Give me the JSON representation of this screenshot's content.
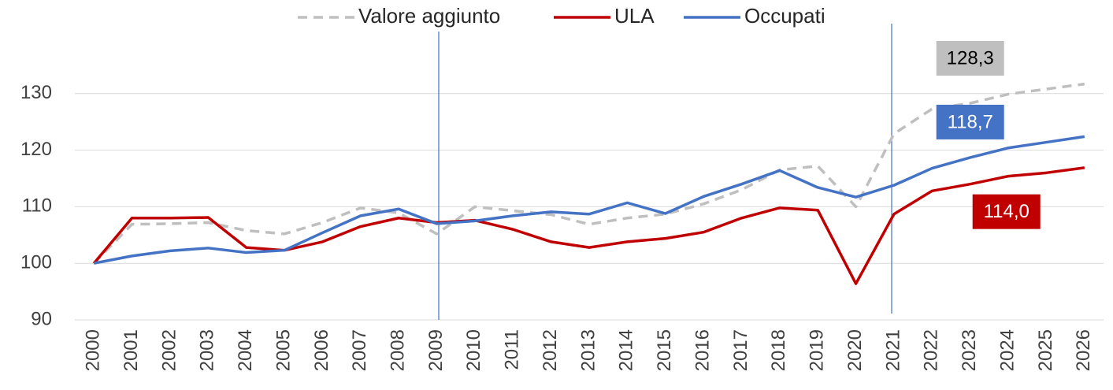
{
  "chart_data": {
    "type": "line",
    "categories": [
      "2000",
      "2001",
      "2002",
      "2003",
      "2004",
      "2005",
      "2006",
      "2007",
      "2008",
      "2009",
      "2010",
      "2011",
      "2012",
      "2013",
      "2014",
      "2015",
      "2016",
      "2017",
      "2018",
      "2019",
      "2020",
      "2021",
      "2022",
      "2023",
      "2024",
      "2025",
      "2026"
    ],
    "series": [
      {
        "name": "Valore aggiunto",
        "color": "#bfbfbf",
        "dashed": true,
        "values": [
          100,
          106.9,
          107,
          107.2,
          105.8,
          105.2,
          107.2,
          109.8,
          108.9,
          105.2,
          110,
          109.3,
          108.6,
          106.9,
          108,
          108.7,
          110.5,
          113,
          116.5,
          117.2,
          110,
          122.9,
          127.3,
          128.3,
          129.9,
          130.8,
          131.7
        ],
        "value_labels": [
          null,
          null,
          null,
          null,
          null,
          null,
          null,
          null,
          null,
          null,
          null,
          null,
          null,
          null,
          null,
          null,
          null,
          null,
          null,
          null,
          null,
          null,
          null,
          "128,3",
          null,
          null,
          null
        ]
      },
      {
        "name": "ULA",
        "color": "#c00000",
        "values": [
          100,
          108,
          108,
          108.1,
          102.8,
          102.3,
          103.8,
          106.5,
          108,
          107.2,
          107.6,
          106,
          103.8,
          102.8,
          103.8,
          104.4,
          105.5,
          108,
          109.8,
          109.4,
          96.4,
          108.7,
          112.8,
          114,
          115.4,
          116,
          116.9
        ],
        "value_labels": [
          null,
          null,
          null,
          null,
          null,
          null,
          null,
          null,
          null,
          null,
          null,
          null,
          null,
          null,
          null,
          null,
          null,
          null,
          null,
          null,
          null,
          null,
          null,
          "114,0",
          null,
          null,
          null
        ]
      },
      {
        "name": "Occupati",
        "color": "#4472c4",
        "values": [
          100,
          101.3,
          102.2,
          102.7,
          101.9,
          102.3,
          105.4,
          108.4,
          109.6,
          107,
          107.5,
          108.4,
          109.1,
          108.7,
          110.7,
          108.8,
          111.8,
          114,
          116.4,
          113.4,
          111.7,
          113.8,
          116.8,
          118.7,
          120.4,
          121.4,
          122.4
        ],
        "value_labels": [
          null,
          null,
          null,
          null,
          null,
          null,
          null,
          null,
          null,
          null,
          null,
          null,
          null,
          null,
          null,
          null,
          null,
          null,
          null,
          null,
          null,
          null,
          null,
          "118,7",
          null,
          null,
          null
        ]
      }
    ],
    "ylim": [
      90,
      140
    ],
    "yticks": [
      90,
      100,
      110,
      120,
      130
    ],
    "grid": true,
    "legend": "top"
  }
}
